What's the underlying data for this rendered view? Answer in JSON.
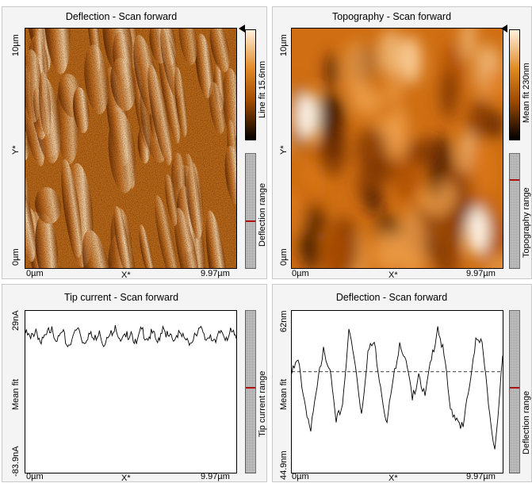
{
  "panels": {
    "deflection_image": {
      "title": "Deflection - Scan forward",
      "y_top": "10µm",
      "y_axis": "Y*",
      "y_bottom": "0µm",
      "x_left": "0µm",
      "x_axis": "X*",
      "x_right": "9.97µm",
      "colorbar_label": "Line fit 15.6nm",
      "range_label": "Deflection range",
      "range_marker": 0.58,
      "colormap": [
        "#000000",
        "#a04a00",
        "#e28a25",
        "#fff1dc"
      ]
    },
    "topography_image": {
      "title": "Topography - Scan forward",
      "y_top": "10µm",
      "y_axis": "Y*",
      "y_bottom": "0µm",
      "x_left": "0µm",
      "x_axis": "X*",
      "x_right": "9.97µm",
      "colorbar_label": "Mean fit 230nm",
      "range_label": "Topography range",
      "range_marker": 0.22,
      "colormap": [
        "#000000",
        "#a04a00",
        "#e28a25",
        "#fff1dc"
      ]
    },
    "tip_current_plot": {
      "title": "Tip current - Scan forward",
      "y_top": "29nA",
      "y_axis": "Mean fit",
      "y_bottom": "-83.9nA",
      "x_left": "0µm",
      "x_axis": "X*",
      "x_right": "9.97µm",
      "range_label": "Tip current range",
      "range_marker": 0.47
    },
    "deflection_plot": {
      "title": "Deflection - Scan forward",
      "y_top": "62nm",
      "y_axis": "Mean fit",
      "y_bottom": "44.9nm",
      "x_left": "0µm",
      "x_axis": "X*",
      "x_right": "9.97µm",
      "range_label": "Deflection range",
      "range_marker": 0.47
    }
  },
  "chart_data": [
    {
      "type": "line",
      "title": "Tip current - Scan forward",
      "xlabel": "X*",
      "ylabel": "Mean fit",
      "xlim": [
        0,
        9.97
      ],
      "ylim": [
        -83.9,
        29
      ],
      "x_unit": "µm",
      "y_unit": "nA",
      "color": "#000000",
      "x": [
        0,
        0.25,
        0.5,
        0.75,
        1.0,
        1.25,
        1.5,
        1.75,
        2.0,
        2.25,
        2.5,
        2.75,
        3.0,
        3.25,
        3.5,
        3.75,
        4.0,
        4.25,
        4.5,
        4.75,
        5.0,
        5.25,
        5.5,
        5.75,
        6.0,
        6.25,
        6.5,
        6.75,
        7.0,
        7.25,
        7.5,
        7.75,
        8.0,
        8.25,
        8.5,
        8.75,
        9.0,
        9.25,
        9.5,
        9.75,
        9.97
      ],
      "y": [
        16,
        12,
        19,
        8,
        15,
        21,
        10,
        17,
        6,
        14,
        20,
        9,
        16,
        11,
        18,
        7,
        15,
        22,
        10,
        13,
        17,
        8,
        19,
        12,
        16,
        9,
        21,
        14,
        10,
        18,
        13,
        7,
        16,
        20,
        11,
        15,
        9,
        18,
        13,
        17,
        12
      ]
    },
    {
      "type": "line",
      "title": "Deflection - Scan forward",
      "xlabel": "X*",
      "ylabel": "Mean fit",
      "xlim": [
        0,
        9.97
      ],
      "ylim": [
        44.9,
        62
      ],
      "x_unit": "µm",
      "y_unit": "nm",
      "color": "#000000",
      "mean_line": 55.7,
      "x": [
        0,
        0.3,
        0.6,
        0.9,
        1.2,
        1.5,
        1.8,
        2.1,
        2.4,
        2.7,
        3.0,
        3.3,
        3.6,
        3.9,
        4.2,
        4.5,
        4.8,
        5.1,
        5.4,
        5.7,
        6.0,
        6.3,
        6.6,
        6.9,
        7.2,
        7.5,
        7.8,
        8.1,
        8.4,
        8.7,
        9.0,
        9.3,
        9.6,
        9.97
      ],
      "y": [
        55.5,
        57.0,
        52.5,
        49.0,
        54.0,
        58.5,
        56.0,
        50.0,
        52.0,
        60.5,
        56.5,
        51.0,
        58.0,
        59.0,
        54.0,
        50.0,
        55.0,
        59.0,
        57.0,
        52.5,
        55.5,
        53.0,
        57.0,
        60.8,
        57.5,
        51.5,
        50.5,
        49.5,
        54.0,
        59.5,
        59.0,
        52.0,
        47.0,
        57.5
      ]
    }
  ]
}
